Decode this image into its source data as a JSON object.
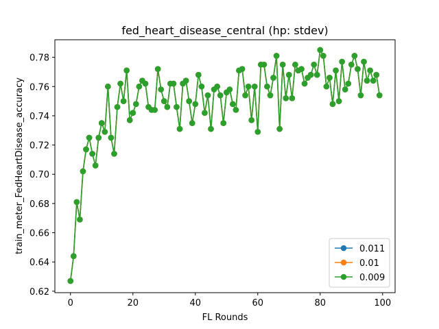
{
  "chart_data": {
    "type": "line",
    "title": "fed_heart_disease_central (hp: stdev)",
    "xlabel": "FL Rounds",
    "ylabel": "train_meter_FedHeartDisease_accuracy",
    "xlim": [
      -5,
      104
    ],
    "ylim": [
      0.619,
      0.792
    ],
    "x_ticks": [
      "0",
      "20",
      "40",
      "60",
      "80",
      "100"
    ],
    "y_ticks": [
      "0.62",
      "0.64",
      "0.66",
      "0.68",
      "0.70",
      "0.72",
      "0.74",
      "0.76",
      "0.78"
    ],
    "grid": false,
    "legend_position": "lower-right",
    "series": [
      {
        "name": "0.011",
        "color": "#1f77b4",
        "x": [
          0,
          1,
          2,
          3,
          4,
          5,
          6,
          7,
          8,
          9,
          10,
          11,
          12,
          13,
          14,
          15,
          16,
          17,
          18,
          19,
          20,
          21,
          22,
          23,
          24,
          25,
          26,
          27,
          28,
          29,
          30,
          31,
          32,
          33,
          34,
          35,
          36,
          37,
          38,
          39,
          40,
          41,
          42,
          43,
          44,
          45,
          46,
          47,
          48,
          49,
          50,
          51,
          52,
          53,
          54,
          55,
          56,
          57,
          58,
          59,
          60,
          61,
          62,
          63,
          64,
          65,
          66,
          67,
          68,
          69,
          70,
          71,
          72,
          73,
          74,
          75,
          76,
          77,
          78,
          79,
          80,
          81,
          82,
          83,
          84,
          85,
          86,
          87,
          88,
          89,
          90,
          91,
          92,
          93,
          94,
          95,
          96,
          97,
          98,
          99
        ],
        "y": [
          0.627,
          0.644,
          0.681,
          0.669,
          0.702,
          0.717,
          0.725,
          0.714,
          0.706,
          0.725,
          0.735,
          0.729,
          0.76,
          0.725,
          0.714,
          0.746,
          0.762,
          0.75,
          0.771,
          0.737,
          0.742,
          0.748,
          0.76,
          0.764,
          0.762,
          0.746,
          0.744,
          0.744,
          0.772,
          0.758,
          0.75,
          0.746,
          0.762,
          0.762,
          0.746,
          0.731,
          0.762,
          0.764,
          0.75,
          0.735,
          0.748,
          0.768,
          0.76,
          0.742,
          0.754,
          0.731,
          0.758,
          0.76,
          0.754,
          0.735,
          0.756,
          0.758,
          0.748,
          0.744,
          0.771,
          0.772,
          0.754,
          0.76,
          0.737,
          0.76,
          0.729,
          0.775,
          0.775,
          0.76,
          0.754,
          0.766,
          0.781,
          0.731,
          0.775,
          0.752,
          0.768,
          0.752,
          0.775,
          0.771,
          0.772,
          0.762,
          0.766,
          0.768,
          0.775,
          0.768,
          0.785,
          0.781,
          0.76,
          0.766,
          0.748,
          0.771,
          0.75,
          0.777,
          0.758,
          0.762,
          0.775,
          0.781,
          0.772,
          0.754,
          0.777,
          0.764,
          0.771,
          0.764,
          0.768,
          0.754
        ]
      },
      {
        "name": "0.01",
        "color": "#ff7f0e",
        "x": [
          0,
          1,
          2,
          3,
          4,
          5,
          6,
          7,
          8,
          9,
          10,
          11,
          12,
          13,
          14,
          15,
          16,
          17,
          18,
          19,
          20,
          21,
          22,
          23,
          24,
          25,
          26,
          27,
          28,
          29,
          30,
          31,
          32,
          33,
          34,
          35,
          36,
          37,
          38,
          39,
          40,
          41,
          42,
          43,
          44,
          45,
          46,
          47,
          48,
          49,
          50,
          51,
          52,
          53,
          54,
          55,
          56,
          57,
          58,
          59,
          60,
          61,
          62,
          63,
          64,
          65,
          66,
          67,
          68,
          69,
          70,
          71,
          72,
          73,
          74,
          75,
          76,
          77,
          78,
          79,
          80,
          81,
          82,
          83,
          84,
          85,
          86,
          87,
          88,
          89,
          90,
          91,
          92,
          93,
          94,
          95,
          96,
          97,
          98,
          99
        ],
        "y": [
          0.627,
          0.644,
          0.681,
          0.669,
          0.702,
          0.717,
          0.725,
          0.714,
          0.706,
          0.725,
          0.735,
          0.729,
          0.76,
          0.725,
          0.714,
          0.746,
          0.762,
          0.75,
          0.771,
          0.737,
          0.742,
          0.748,
          0.76,
          0.764,
          0.762,
          0.746,
          0.744,
          0.744,
          0.772,
          0.758,
          0.75,
          0.746,
          0.762,
          0.762,
          0.746,
          0.731,
          0.762,
          0.764,
          0.75,
          0.735,
          0.748,
          0.768,
          0.76,
          0.742,
          0.754,
          0.731,
          0.758,
          0.76,
          0.754,
          0.735,
          0.756,
          0.758,
          0.748,
          0.744,
          0.771,
          0.772,
          0.754,
          0.76,
          0.737,
          0.76,
          0.729,
          0.775,
          0.775,
          0.76,
          0.754,
          0.766,
          0.781,
          0.731,
          0.775,
          0.752,
          0.768,
          0.752,
          0.775,
          0.771,
          0.772,
          0.762,
          0.766,
          0.768,
          0.775,
          0.768,
          0.785,
          0.781,
          0.76,
          0.766,
          0.748,
          0.771,
          0.75,
          0.777,
          0.758,
          0.762,
          0.775,
          0.781,
          0.772,
          0.754,
          0.777,
          0.764,
          0.771,
          0.764,
          0.768,
          0.754
        ]
      },
      {
        "name": "0.009",
        "color": "#2ca02c",
        "x": [
          0,
          1,
          2,
          3,
          4,
          5,
          6,
          7,
          8,
          9,
          10,
          11,
          12,
          13,
          14,
          15,
          16,
          17,
          18,
          19,
          20,
          21,
          22,
          23,
          24,
          25,
          26,
          27,
          28,
          29,
          30,
          31,
          32,
          33,
          34,
          35,
          36,
          37,
          38,
          39,
          40,
          41,
          42,
          43,
          44,
          45,
          46,
          47,
          48,
          49,
          50,
          51,
          52,
          53,
          54,
          55,
          56,
          57,
          58,
          59,
          60,
          61,
          62,
          63,
          64,
          65,
          66,
          67,
          68,
          69,
          70,
          71,
          72,
          73,
          74,
          75,
          76,
          77,
          78,
          79,
          80,
          81,
          82,
          83,
          84,
          85,
          86,
          87,
          88,
          89,
          90,
          91,
          92,
          93,
          94,
          95,
          96,
          97,
          98,
          99
        ],
        "y": [
          0.627,
          0.644,
          0.681,
          0.669,
          0.702,
          0.717,
          0.725,
          0.714,
          0.706,
          0.725,
          0.735,
          0.729,
          0.76,
          0.725,
          0.714,
          0.746,
          0.762,
          0.75,
          0.771,
          0.737,
          0.742,
          0.748,
          0.76,
          0.764,
          0.762,
          0.746,
          0.744,
          0.744,
          0.772,
          0.758,
          0.75,
          0.746,
          0.762,
          0.762,
          0.746,
          0.731,
          0.762,
          0.764,
          0.75,
          0.735,
          0.748,
          0.768,
          0.76,
          0.742,
          0.754,
          0.731,
          0.758,
          0.76,
          0.754,
          0.735,
          0.756,
          0.758,
          0.748,
          0.744,
          0.771,
          0.772,
          0.754,
          0.76,
          0.737,
          0.76,
          0.729,
          0.775,
          0.775,
          0.76,
          0.754,
          0.766,
          0.781,
          0.731,
          0.775,
          0.752,
          0.768,
          0.752,
          0.775,
          0.771,
          0.772,
          0.762,
          0.766,
          0.768,
          0.775,
          0.768,
          0.785,
          0.781,
          0.76,
          0.766,
          0.748,
          0.771,
          0.75,
          0.777,
          0.758,
          0.762,
          0.775,
          0.781,
          0.772,
          0.754,
          0.777,
          0.764,
          0.771,
          0.764,
          0.768,
          0.754
        ]
      }
    ]
  }
}
